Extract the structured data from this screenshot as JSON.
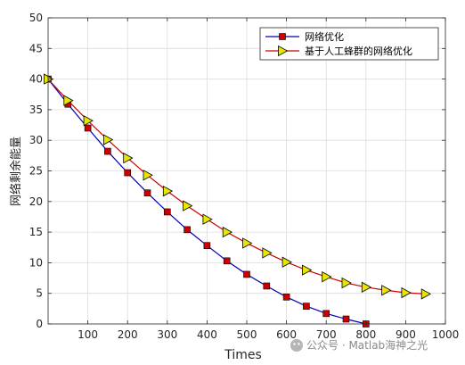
{
  "chart_data": {
    "type": "line",
    "xlabel": "Times",
    "ylabel": "网络剩余能量",
    "xlim": [
      0,
      1000
    ],
    "ylim": [
      0,
      50
    ],
    "xticks": [
      100,
      200,
      300,
      400,
      500,
      600,
      700,
      800,
      900,
      1000
    ],
    "xtick_labels": [
      "100",
      "200",
      "300",
      "400",
      "500",
      "600",
      "700",
      "800",
      "900",
      "1000"
    ],
    "yticks": [
      0,
      5,
      10,
      15,
      20,
      25,
      30,
      35,
      40,
      45,
      50
    ],
    "grid": true,
    "legend_position": "top-right",
    "series": [
      {
        "name": "网络优化",
        "color": "#0000b4",
        "marker": "square",
        "marker_color": "#cc0000",
        "x": [
          0,
          50,
          100,
          150,
          200,
          250,
          300,
          350,
          400,
          450,
          500,
          550,
          600,
          650,
          700,
          750,
          800
        ],
        "y": [
          40,
          35.9,
          32.0,
          28.2,
          24.7,
          21.4,
          18.3,
          15.4,
          12.8,
          10.3,
          8.1,
          6.2,
          4.4,
          2.9,
          1.7,
          0.8,
          0
        ]
      },
      {
        "name": "基于人工蜂群的网络优化",
        "color": "#cc0000",
        "marker": "triangle-right",
        "marker_color": "#e6e600",
        "x": [
          0,
          50,
          100,
          150,
          200,
          250,
          300,
          350,
          400,
          450,
          500,
          550,
          600,
          650,
          700,
          750,
          800,
          850,
          900,
          950
        ],
        "y": [
          40,
          36.5,
          33.2,
          30.1,
          27.1,
          24.3,
          21.7,
          19.3,
          17.1,
          15.0,
          13.2,
          11.6,
          10.1,
          8.8,
          7.7,
          6.7,
          6.0,
          5.5,
          5.1,
          4.9
        ]
      }
    ]
  },
  "watermark": {
    "text": "公众号 · Matlab海神之光"
  }
}
